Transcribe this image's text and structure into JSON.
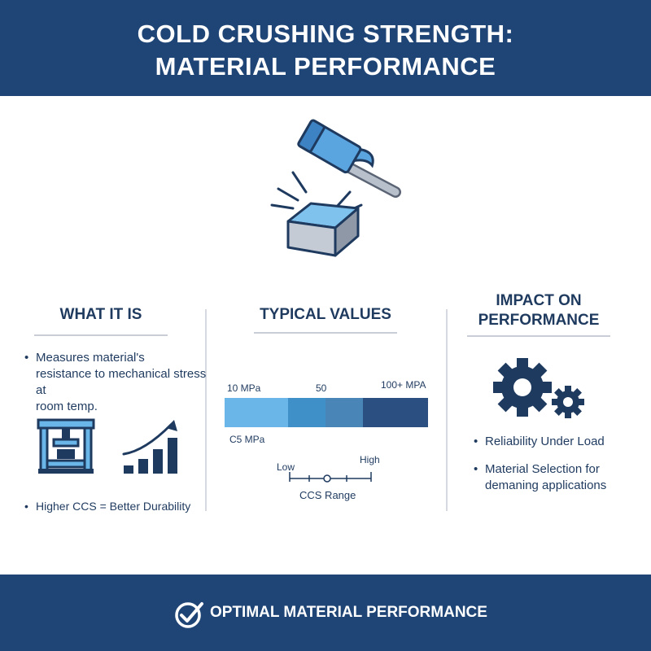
{
  "header": {
    "title_line1": "COLD CRUSHING STRENGTH:",
    "title_line2": "MATERIAL PERFORMANCE"
  },
  "hero": {
    "icon": "hammer-on-block-icon"
  },
  "what_it_is": {
    "title": "WHAT IT IS",
    "description_lines": [
      "Measures material's",
      "resistance to mechanical stress at",
      "room temp."
    ],
    "icons": [
      "hydraulic-press-icon",
      "rising-bar-chart-icon"
    ],
    "note": "Higher CCS = Better Durability"
  },
  "typical_values": {
    "title": "TYPICAL VALUES",
    "bar_labels": {
      "left": "10 MPa",
      "middle": "50",
      "right": "100+ MPA"
    },
    "bar_segments": [
      {
        "color": "#6ab6e8"
      },
      {
        "color": "#3f8fc9"
      },
      {
        "color": "#4a85b8"
      },
      {
        "color": "#2a4f80"
      }
    ],
    "below_label": "C5 MPa",
    "range": {
      "low": "Low",
      "high": "High",
      "caption": "CCS Range"
    }
  },
  "impact": {
    "title_line1": "IMPACT ON",
    "title_line2": "PERFORMANCE",
    "icon": "gears-icon",
    "items": [
      [
        "Reliability Under Load"
      ],
      [
        "Material Selection for",
        "demaning applications"
      ]
    ]
  },
  "footer": {
    "text": "OPTIMAL MATERIAL PERFORMANCE",
    "icon": "check-circle-icon"
  },
  "colors": {
    "navy": "#1f4576",
    "light_blue": "#6ab6e8",
    "mid_blue": "#3f8fc9",
    "dark_blue": "#2a4f80"
  }
}
